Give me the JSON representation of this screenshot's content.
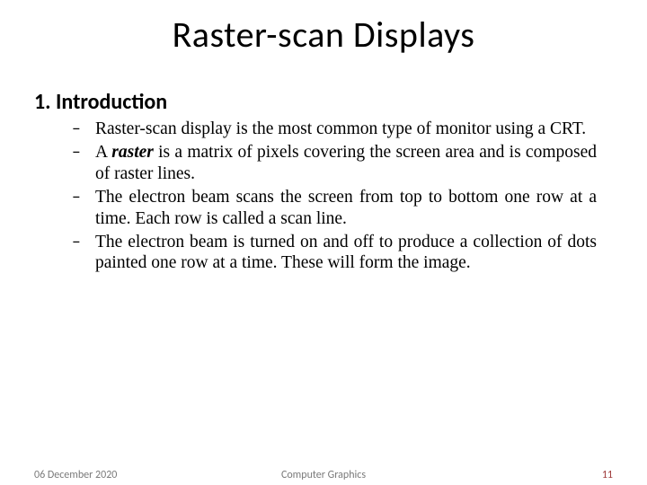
{
  "title": "Raster-scan Displays",
  "section_number": "1.",
  "section_label": "Introduction",
  "bullets": [
    {
      "dash": "–",
      "prefix": "Raster-scan display is the most common type of monitor using a CRT."
    },
    {
      "dash": "–",
      "prefix": "A ",
      "bold": "raster",
      "suffix": " is a matrix of pixels covering the screen area and is composed of raster lines."
    },
    {
      "dash": "–",
      "prefix": "The electron beam scans the screen from top to bottom one row at a time. Each row is called a scan line."
    },
    {
      "dash": "–",
      "prefix": "The electron beam is turned on and off to produce a collection of dots painted one row at a time. These will form the image."
    }
  ],
  "footer": {
    "date": "06 December 2020",
    "center": "Computer Graphics",
    "page": "11"
  },
  "style": {
    "title_fontsize": 40,
    "section_fontsize": 24,
    "bullet_fontsize": 19.5,
    "footer_fontsize": 12,
    "text_color": "#000000",
    "footer_color": "#7a7a7a",
    "page_number_color": "#9e3a3a",
    "background_color": "#ffffff",
    "bullet_font": "Times New Roman",
    "title_font": "Calibri"
  }
}
